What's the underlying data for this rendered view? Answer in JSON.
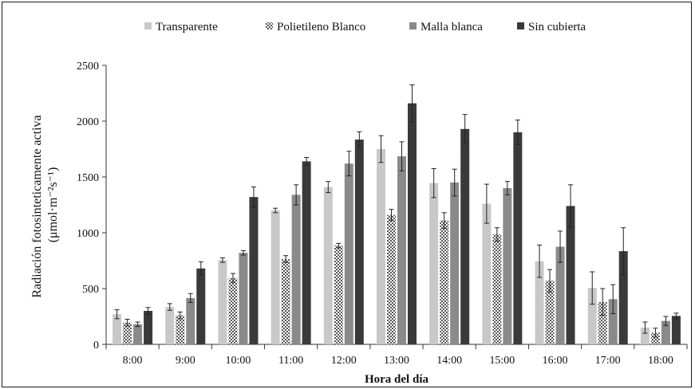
{
  "chart_data": {
    "type": "bar",
    "title": "",
    "xlabel": "Hora del día",
    "ylabel_line1": "Radiación fotosinteticamente activa",
    "ylabel_line2": "(μmol·m⁻²s⁻¹)",
    "ylim": [
      0,
      2500
    ],
    "yticks": [
      "0",
      "500",
      "1000",
      "1500",
      "2000",
      "2500"
    ],
    "categories": [
      "8:00",
      "9:00",
      "10:00",
      "11:00",
      "12:00",
      "13:00",
      "14:00",
      "15:00",
      "16:00",
      "17:00",
      "18:00"
    ],
    "legend_position": "top",
    "grid": false,
    "series": [
      {
        "name": "Transparente",
        "color": "#c8c8c8",
        "pattern": "solid",
        "values": [
          270,
          335,
          755,
          1200,
          1410,
          1750,
          1445,
          1260,
          745,
          505,
          150
        ],
        "errors": [
          40,
          30,
          20,
          20,
          50,
          120,
          130,
          175,
          145,
          145,
          50
        ]
      },
      {
        "name": "Polietileno Blanco",
        "color": "#9a9a9a",
        "pattern": "checker",
        "values": [
          195,
          260,
          595,
          765,
          885,
          1160,
          1110,
          985,
          570,
          380,
          105
        ],
        "errors": [
          30,
          30,
          40,
          30,
          20,
          50,
          70,
          60,
          100,
          120,
          40
        ]
      },
      {
        "name": "Malla blanca",
        "color": "#8a8a8a",
        "pattern": "solid",
        "values": [
          180,
          415,
          820,
          1340,
          1620,
          1685,
          1450,
          1400,
          875,
          405,
          210
        ],
        "errors": [
          20,
          40,
          20,
          90,
          110,
          130,
          120,
          60,
          140,
          130,
          40
        ]
      },
      {
        "name": "Sin cubierta",
        "color": "#3a3a3a",
        "pattern": "solid",
        "values": [
          300,
          680,
          1320,
          1640,
          1835,
          2160,
          1930,
          1900,
          1240,
          835,
          255
        ],
        "errors": [
          30,
          60,
          90,
          35,
          70,
          165,
          130,
          110,
          190,
          210,
          25
        ]
      }
    ]
  }
}
